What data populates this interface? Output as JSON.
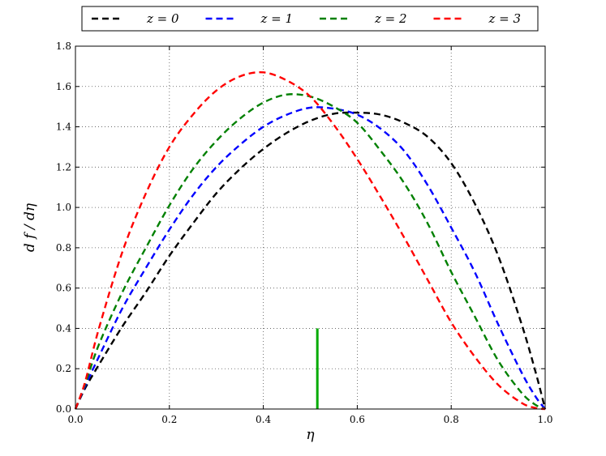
{
  "chart_data": {
    "type": "line",
    "title": "",
    "xlabel": "η",
    "ylabel": "d f / dη",
    "xlim": [
      0.0,
      1.0
    ],
    "ylim": [
      0.0,
      1.8
    ],
    "xticks": [
      "0.0",
      "0.2",
      "0.4",
      "0.6",
      "0.8",
      "1.0"
    ],
    "yticks": [
      "0.0",
      "0.2",
      "0.4",
      "0.6",
      "0.8",
      "1.0",
      "1.2",
      "1.4",
      "1.6",
      "1.8"
    ],
    "grid": true,
    "legend_position": "top-outside",
    "series": [
      {
        "name": "z = 0",
        "color": "#000000",
        "style": "dashed",
        "x": [
          0.0,
          0.02,
          0.05,
          0.1,
          0.15,
          0.2,
          0.25,
          0.3,
          0.35,
          0.4,
          0.45,
          0.5,
          0.55,
          0.6,
          0.65,
          0.7,
          0.75,
          0.8,
          0.85,
          0.9,
          0.95,
          0.98,
          1.0
        ],
        "y": [
          0.0,
          0.1,
          0.22,
          0.41,
          0.58,
          0.76,
          0.92,
          1.07,
          1.19,
          1.29,
          1.37,
          1.43,
          1.465,
          1.47,
          1.46,
          1.42,
          1.35,
          1.22,
          1.02,
          0.76,
          0.42,
          0.18,
          0.0
        ]
      },
      {
        "name": "z = 1",
        "color": "#0000ff",
        "style": "dashed",
        "x": [
          0.0,
          0.02,
          0.05,
          0.1,
          0.15,
          0.2,
          0.25,
          0.3,
          0.35,
          0.4,
          0.45,
          0.5,
          0.55,
          0.6,
          0.65,
          0.7,
          0.75,
          0.8,
          0.85,
          0.9,
          0.95,
          0.98,
          1.0
        ],
        "y": [
          0.0,
          0.11,
          0.26,
          0.5,
          0.7,
          0.89,
          1.06,
          1.2,
          1.31,
          1.4,
          1.46,
          1.495,
          1.49,
          1.46,
          1.39,
          1.28,
          1.11,
          0.9,
          0.68,
          0.42,
          0.18,
          0.06,
          0.0
        ]
      },
      {
        "name": "z = 2",
        "color": "#008000",
        "style": "dashed",
        "x": [
          0.0,
          0.02,
          0.05,
          0.1,
          0.15,
          0.2,
          0.25,
          0.3,
          0.35,
          0.4,
          0.45,
          0.5,
          0.55,
          0.6,
          0.65,
          0.7,
          0.75,
          0.8,
          0.85,
          0.9,
          0.95,
          0.98,
          1.0
        ],
        "y": [
          0.0,
          0.12,
          0.32,
          0.58,
          0.8,
          1.01,
          1.19,
          1.33,
          1.44,
          1.52,
          1.56,
          1.55,
          1.5,
          1.42,
          1.28,
          1.12,
          0.92,
          0.68,
          0.46,
          0.24,
          0.08,
          0.02,
          0.0
        ]
      },
      {
        "name": "z = 3",
        "color": "#ff0000",
        "style": "dashed",
        "x": [
          0.0,
          0.02,
          0.05,
          0.1,
          0.15,
          0.2,
          0.25,
          0.3,
          0.35,
          0.4,
          0.45,
          0.5,
          0.55,
          0.6,
          0.65,
          0.7,
          0.75,
          0.8,
          0.85,
          0.9,
          0.95,
          0.98,
          1.0
        ],
        "y": [
          0.0,
          0.13,
          0.4,
          0.78,
          1.07,
          1.3,
          1.46,
          1.58,
          1.65,
          1.67,
          1.63,
          1.55,
          1.41,
          1.24,
          1.05,
          0.85,
          0.64,
          0.43,
          0.26,
          0.12,
          0.03,
          0.005,
          0.0
        ]
      }
    ],
    "annotations": [
      {
        "type": "vertical-line",
        "x": 0.515,
        "y_from": 0.0,
        "y_to": 0.4,
        "color": "#00aa00"
      }
    ]
  }
}
